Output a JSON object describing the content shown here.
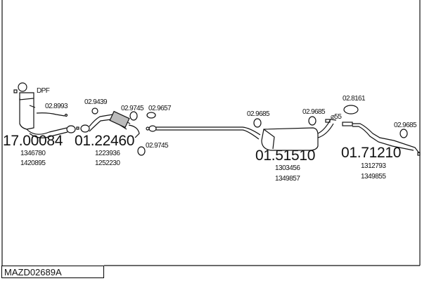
{
  "diagram_code": "MAZD02689A",
  "dpf_label": "DPF",
  "parts": [
    {
      "number": "17.00084",
      "oe": [
        "1346780",
        "1420895"
      ]
    },
    {
      "number": "01.22460",
      "oe": [
        "1223936",
        "1252230"
      ]
    },
    {
      "number": "01.51510",
      "oe": [
        "1303456",
        "1349857"
      ]
    },
    {
      "number": "01.71210",
      "oe": [
        "1312793",
        "1349855"
      ]
    }
  ],
  "accessories": [
    "02.8993",
    "02.9439",
    "02.9745",
    "02.9657",
    "02.9745",
    "02.9685",
    "02.9685",
    "02.8161",
    "02.9685"
  ],
  "diameter_label": "⌀55"
}
